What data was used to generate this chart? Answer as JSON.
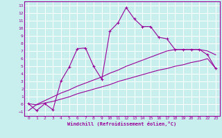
{
  "title": "",
  "xlabel": "Windchill (Refroidissement éolien,°C)",
  "bg_color": "#c8eeee",
  "grid_color": "#ffffff",
  "line_color": "#990099",
  "xlim": [
    -0.5,
    23.5
  ],
  "ylim": [
    -1.5,
    13.5
  ],
  "xticks": [
    0,
    1,
    2,
    3,
    4,
    5,
    6,
    7,
    8,
    9,
    10,
    11,
    12,
    13,
    14,
    15,
    16,
    17,
    18,
    19,
    20,
    21,
    22,
    23
  ],
  "yticks": [
    -1,
    0,
    1,
    2,
    3,
    4,
    5,
    6,
    7,
    8,
    9,
    10,
    11,
    12,
    13
  ],
  "main_x": [
    0,
    1,
    2,
    3,
    4,
    5,
    6,
    7,
    8,
    9,
    10,
    11,
    12,
    13,
    14,
    15,
    16,
    17,
    18,
    19,
    20,
    21,
    22,
    23
  ],
  "main_y": [
    0.1,
    -0.8,
    0.1,
    -0.7,
    3.1,
    4.9,
    7.3,
    7.4,
    5.0,
    3.3,
    9.6,
    10.7,
    12.7,
    11.2,
    10.2,
    10.2,
    8.8,
    8.6,
    7.2,
    7.2,
    7.2,
    7.2,
    6.5,
    4.7
  ],
  "line2_x": [
    0,
    1,
    2,
    3,
    4,
    5,
    6,
    7,
    8,
    9,
    10,
    11,
    12,
    13,
    14,
    15,
    16,
    17,
    18,
    19,
    20,
    21,
    22,
    23
  ],
  "line2_y": [
    0.1,
    -0.05,
    0.2,
    0.4,
    0.7,
    1.0,
    1.4,
    1.7,
    2.0,
    2.3,
    2.6,
    3.0,
    3.3,
    3.6,
    3.9,
    4.2,
    4.5,
    4.7,
    5.0,
    5.2,
    5.5,
    5.7,
    6.0,
    4.7
  ],
  "line3_x": [
    0,
    1,
    2,
    3,
    4,
    5,
    6,
    7,
    8,
    9,
    10,
    11,
    12,
    13,
    14,
    15,
    16,
    17,
    18,
    19,
    20,
    21,
    22,
    23
  ],
  "line3_y": [
    -0.8,
    0.0,
    0.5,
    1.0,
    1.5,
    1.9,
    2.4,
    2.8,
    3.2,
    3.6,
    4.1,
    4.5,
    5.0,
    5.4,
    5.8,
    6.2,
    6.6,
    7.0,
    7.2,
    7.2,
    7.2,
    7.2,
    7.0,
    6.5
  ]
}
